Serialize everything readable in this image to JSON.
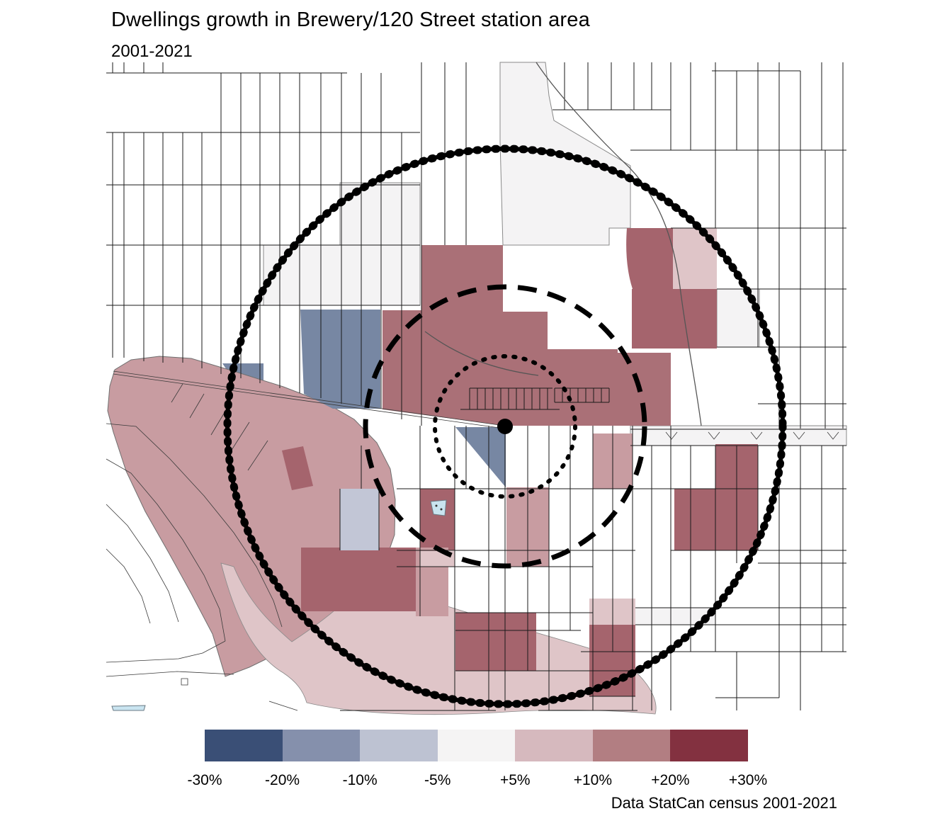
{
  "title": "Dwellings growth in Brewery/120 Street station area",
  "subtitle": "2001-2021",
  "attribution": "Data StatCan census 2001-2021",
  "legend": {
    "break_labels": [
      "-30%",
      "-20%",
      "-10%",
      "-5%",
      "+5%",
      "+10%",
      "+20%",
      "+30%"
    ],
    "class_colors": [
      "#3A4F76",
      "#8590AC",
      "#BDC2D2",
      "#F5F4F4",
      "#D6B9BE",
      "#B27E82",
      "#833140"
    ]
  },
  "map": {
    "palette": {
      "growth_strong": "#A5646D",
      "growth_strong_region": "#AA7077",
      "growth_medium": "#C89CA1",
      "growth_low": "#DFC5C8",
      "stable": "#F4F3F4",
      "decline_low": "#C2C6D6",
      "decline_medium": "#7787A3",
      "water": "#C9E4F0",
      "ring": "#000000"
    }
  }
}
